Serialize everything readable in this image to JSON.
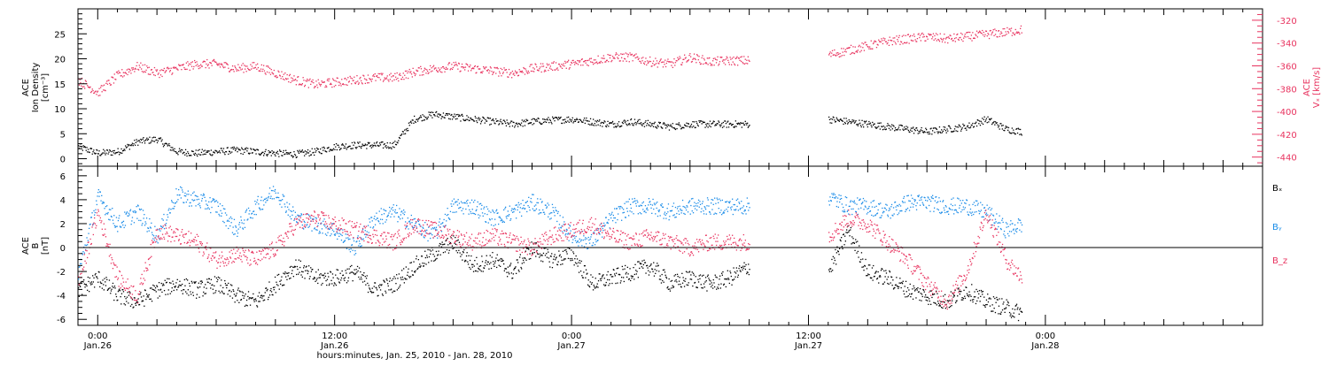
{
  "colors": {
    "density": "#000000",
    "vx": "#e8335f",
    "bx": "#000000",
    "by": "#1a8ce8",
    "bz": "#e8335f",
    "axis": "#000000"
  },
  "x_axis": {
    "label": "hours:minutes, Jan. 25, 2010 - Jan. 28, 2010",
    "range_hours": [
      -1.0,
      59.0
    ],
    "ticks": [
      {
        "hour": 0,
        "time": "0:00",
        "date": "Jan.26"
      },
      {
        "hour": 12,
        "time": "12:00",
        "date": "Jan.26"
      },
      {
        "hour": 24,
        "time": "0:00",
        "date": "Jan.27"
      },
      {
        "hour": 36,
        "time": "12:00",
        "date": "Jan.27"
      },
      {
        "hour": 48,
        "time": "0:00",
        "date": "Jan.28"
      }
    ]
  },
  "chart_data": [
    {
      "type": "scatter",
      "panel": "top",
      "ylabel_left": [
        "ACE",
        "Ion Density",
        "[cm⁻³]"
      ],
      "ylabel_right": [
        "ACE",
        "Vₓ [km/s]"
      ],
      "ylim_left": [
        -1.5,
        30
      ],
      "yticks_left": [
        0,
        5,
        10,
        15,
        20,
        25
      ],
      "ylim_right": [
        -448,
        -310
      ],
      "yticks_right": [
        -320,
        -340,
        -360,
        -380,
        -400,
        -420,
        -440
      ],
      "gap_hours": [
        33.0,
        37.0
      ],
      "data_end_hour": 46.8,
      "series": [
        {
          "key": "density",
          "axis": "left",
          "x": [
            -1,
            0,
            1,
            2,
            3,
            4,
            5,
            6,
            7,
            8,
            9,
            10,
            11,
            12,
            13,
            14,
            15,
            16,
            17,
            18,
            19,
            20,
            21,
            22,
            23,
            24,
            25,
            26,
            27,
            28,
            29,
            30,
            31,
            32,
            33,
            37,
            38,
            39,
            40,
            41,
            42,
            43,
            44,
            45,
            46,
            46.8
          ],
          "y": [
            2.5,
            1.2,
            1.5,
            3.5,
            4.0,
            1.5,
            1.2,
            1.5,
            1.8,
            1.5,
            1.2,
            1.0,
            1.5,
            2.5,
            2.8,
            2.8,
            2.8,
            8.0,
            9.0,
            8.5,
            8.0,
            7.5,
            7.0,
            7.5,
            7.8,
            8.0,
            7.5,
            7.0,
            7.5,
            7.0,
            6.5,
            7.0,
            7.0,
            7.0,
            7.0,
            8.0,
            7.5,
            7.0,
            6.5,
            6.0,
            5.5,
            6.0,
            6.5,
            8.0,
            6.0,
            5.5
          ]
        },
        {
          "key": "vx",
          "axis": "right",
          "x": [
            -1,
            0,
            1,
            2,
            3,
            4,
            5,
            6,
            7,
            8,
            9,
            10,
            11,
            12,
            13,
            14,
            15,
            16,
            17,
            18,
            19,
            20,
            21,
            22,
            23,
            24,
            25,
            26,
            27,
            28,
            29,
            30,
            31,
            32,
            33,
            37,
            38,
            39,
            40,
            41,
            42,
            43,
            44,
            45,
            46,
            46.8
          ],
          "y": [
            -372,
            -383,
            -368,
            -360,
            -366,
            -362,
            -358,
            -358,
            -362,
            -360,
            -366,
            -372,
            -376,
            -374,
            -372,
            -370,
            -370,
            -365,
            -362,
            -360,
            -362,
            -364,
            -366,
            -362,
            -360,
            -358,
            -355,
            -352,
            -352,
            -356,
            -358,
            -352,
            -356,
            -355,
            -355,
            -350,
            -346,
            -342,
            -338,
            -336,
            -334,
            -336,
            -334,
            -332,
            -330,
            -328
          ]
        }
      ]
    },
    {
      "type": "scatter",
      "panel": "bottom",
      "ylabel_left": [
        "ACE",
        "B",
        "[nT]"
      ],
      "ylim": [
        -6.5,
        6.8
      ],
      "yticks": [
        -6,
        -4,
        -2,
        0,
        2,
        4,
        6
      ],
      "zero_line": true,
      "gap_hours": [
        33.0,
        37.0
      ],
      "data_end_hour": 46.8,
      "series": [
        {
          "key": "bx",
          "name": "Bₓ",
          "x": [
            -1,
            0,
            1,
            2,
            3,
            4,
            5,
            6,
            7,
            8,
            9,
            10,
            11,
            12,
            13,
            14,
            15,
            16,
            17,
            18,
            19,
            20,
            21,
            22,
            23,
            24,
            25,
            26,
            27,
            28,
            29,
            30,
            31,
            32,
            33,
            37,
            38,
            39,
            40,
            41,
            42,
            43,
            44,
            45,
            46,
            46.8
          ],
          "y": [
            -3.5,
            -2.5,
            -4.0,
            -4.5,
            -3.5,
            -3.0,
            -3.5,
            -3.0,
            -4.0,
            -4.5,
            -3.0,
            -1.5,
            -2.5,
            -2.5,
            -2.0,
            -3.5,
            -3.0,
            -1.5,
            -0.5,
            0.5,
            -1.5,
            -1.0,
            -2.0,
            0.0,
            -1.0,
            -0.5,
            -3.0,
            -2.5,
            -2.0,
            -1.5,
            -3.0,
            -2.5,
            -3.0,
            -2.5,
            -1.5,
            -2.0,
            1.5,
            -2.0,
            -2.5,
            -3.5,
            -4.0,
            -4.5,
            -3.5,
            -4.5,
            -5.0,
            -5.5
          ]
        },
        {
          "key": "by",
          "name": "Bᵧ",
          "x": [
            -1,
            0,
            1,
            2,
            3,
            4,
            5,
            6,
            7,
            8,
            9,
            10,
            11,
            12,
            13,
            14,
            15,
            16,
            17,
            18,
            19,
            20,
            21,
            22,
            23,
            24,
            25,
            26,
            27,
            28,
            29,
            30,
            31,
            32,
            33,
            37,
            38,
            39,
            40,
            41,
            42,
            43,
            44,
            45,
            46,
            46.8
          ],
          "y": [
            -2.0,
            4.3,
            2.0,
            3.0,
            1.0,
            4.5,
            4.0,
            3.5,
            1.5,
            3.5,
            4.8,
            2.5,
            2.0,
            1.5,
            0.0,
            2.5,
            3.0,
            2.0,
            1.0,
            3.5,
            3.5,
            2.5,
            3.0,
            3.8,
            3.0,
            1.0,
            0.5,
            2.5,
            3.5,
            3.5,
            3.0,
            3.5,
            3.5,
            3.5,
            3.5,
            4.3,
            3.5,
            3.5,
            3.0,
            3.8,
            3.8,
            3.5,
            3.5,
            3.0,
            1.5,
            2.0
          ]
        },
        {
          "key": "bz",
          "name": "B_z",
          "x": [
            -1,
            0,
            1,
            2,
            3,
            4,
            5,
            6,
            7,
            8,
            9,
            10,
            11,
            12,
            13,
            14,
            15,
            16,
            17,
            18,
            19,
            20,
            21,
            22,
            23,
            24,
            25,
            26,
            27,
            28,
            29,
            30,
            31,
            32,
            33,
            37,
            38,
            39,
            40,
            41,
            42,
            43,
            44,
            45,
            46,
            46.8
          ],
          "y": [
            -3.0,
            3.0,
            -2.5,
            -4.0,
            1.5,
            1.0,
            0.5,
            -1.0,
            -0.5,
            -1.0,
            0.0,
            2.0,
            2.5,
            2.0,
            1.5,
            1.0,
            0.5,
            2.0,
            1.5,
            1.0,
            0.5,
            1.0,
            0.5,
            0.0,
            1.0,
            1.5,
            2.0,
            1.0,
            0.5,
            1.0,
            0.5,
            0.0,
            0.5,
            0.5,
            0.5,
            1.0,
            2.5,
            2.0,
            0.5,
            -1.0,
            -3.0,
            -4.5,
            -2.0,
            3.0,
            -1.0,
            -2.5
          ]
        }
      ]
    }
  ]
}
